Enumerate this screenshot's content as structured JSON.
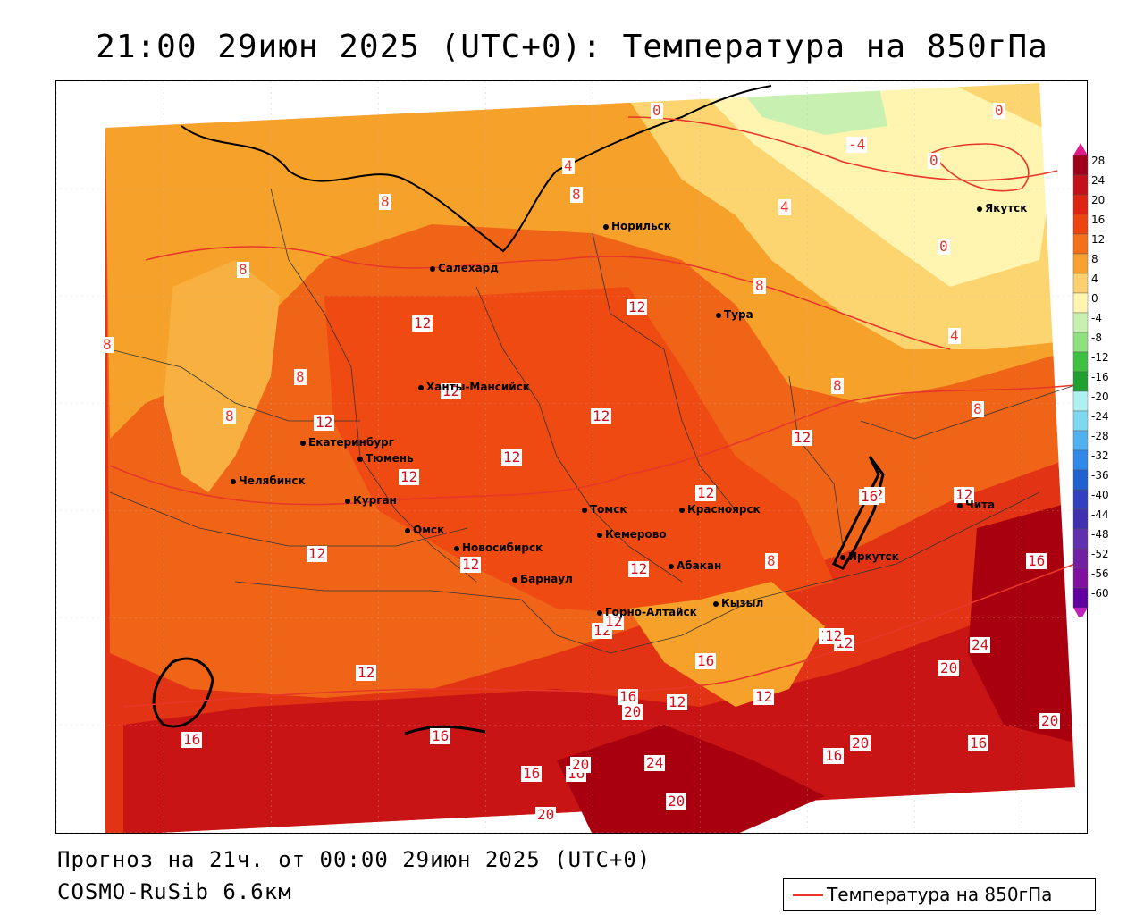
{
  "title": "21:00 29июн 2025 (UTC+0): Температура на 850гПа",
  "footer": {
    "forecast": "Прогноз на 21ч. от 00:00 29июн 2025 (UTC+0)",
    "model": "COSMO-RuSib 6.6км"
  },
  "legend": {
    "label": "Температура на 850гПа",
    "line_color": "#e8362a"
  },
  "colorbar": {
    "ticks": [
      "28",
      "24",
      "20",
      "16",
      "12",
      "8",
      "4",
      "0",
      "-4",
      "-8",
      "-12",
      "-16",
      "-20",
      "-24",
      "-28",
      "-32",
      "-36",
      "-40",
      "-44",
      "-48",
      "-52",
      "-56",
      "-60"
    ],
    "colors": [
      "#a0001a",
      "#c41018",
      "#e02414",
      "#ee4410",
      "#f4701a",
      "#f8a030",
      "#fcd070",
      "#fff4b0",
      "#c8f0b0",
      "#90e080",
      "#40c040",
      "#20a030",
      "#b0f0f0",
      "#80d8f0",
      "#50b0f0",
      "#3088e8",
      "#2060d0",
      "#3040c0",
      "#4030b0",
      "#6030b0",
      "#7020a0",
      "#8010a0",
      "#6000a0"
    ],
    "top_arrow_color": "#e01a8a",
    "bottom_arrow_color": "#c020c0"
  },
  "cities": [
    {
      "name": "Якутск"
    },
    {
      "name": "Норильск"
    },
    {
      "name": "Салехард"
    },
    {
      "name": "Тура"
    },
    {
      "name": "Ханты-Мансийск"
    },
    {
      "name": "Екатеринбург"
    },
    {
      "name": "Тюмень"
    },
    {
      "name": "Челябинск"
    },
    {
      "name": "Курган"
    },
    {
      "name": "Омск"
    },
    {
      "name": "Новосибирск"
    },
    {
      "name": "Томск"
    },
    {
      "name": "Кемерово"
    },
    {
      "name": "Красноярск"
    },
    {
      "name": "Барнаул"
    },
    {
      "name": "Абакан"
    },
    {
      "name": "Горно-Алтайск"
    },
    {
      "name": "Кызыл"
    },
    {
      "name": "Иркутск"
    },
    {
      "name": "Чита"
    }
  ],
  "isotherm_labels": [
    {
      "text": "0"
    },
    {
      "text": "0"
    },
    {
      "text": "-4"
    },
    {
      "text": "0"
    },
    {
      "text": "4"
    },
    {
      "text": "0"
    },
    {
      "text": "4"
    },
    {
      "text": "8"
    },
    {
      "text": "8"
    },
    {
      "text": "8"
    },
    {
      "text": "8"
    },
    {
      "text": "8"
    },
    {
      "text": "8"
    },
    {
      "text": "8"
    },
    {
      "text": "8"
    },
    {
      "text": "4"
    },
    {
      "text": "8"
    },
    {
      "text": "8"
    },
    {
      "text": "12"
    },
    {
      "text": "12"
    },
    {
      "text": "12"
    },
    {
      "text": "12"
    },
    {
      "text": "12"
    },
    {
      "text": "12"
    },
    {
      "text": "12"
    },
    {
      "text": "12"
    },
    {
      "text": "12"
    },
    {
      "text": "12"
    },
    {
      "text": "12"
    },
    {
      "text": "12"
    },
    {
      "text": "12"
    },
    {
      "text": "12"
    },
    {
      "text": "12"
    },
    {
      "text": "12"
    },
    {
      "text": "12"
    },
    {
      "text": "12"
    },
    {
      "text": "12"
    },
    {
      "text": "16"
    },
    {
      "text": "16"
    },
    {
      "text": "16"
    },
    {
      "text": "16"
    },
    {
      "text": "16"
    },
    {
      "text": "16"
    },
    {
      "text": "16"
    },
    {
      "text": "16"
    },
    {
      "text": "16"
    },
    {
      "text": "16"
    },
    {
      "text": "20"
    },
    {
      "text": "20"
    },
    {
      "text": "20"
    },
    {
      "text": "20"
    },
    {
      "text": "20"
    },
    {
      "text": "20"
    },
    {
      "text": "20"
    },
    {
      "text": "24"
    },
    {
      "text": "24"
    },
    {
      "text": "12"
    },
    {
      "text": "12"
    },
    {
      "text": "12"
    }
  ]
}
